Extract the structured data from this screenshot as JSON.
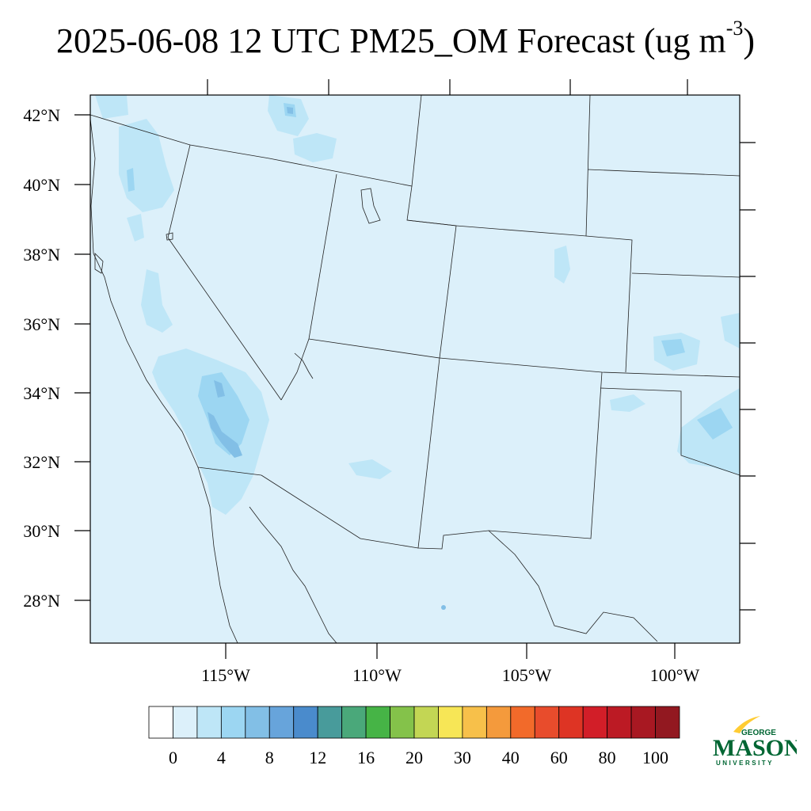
{
  "title": {
    "text": "2025-06-08 12 UTC PM25_OM Forecast (ug m",
    "superscript": "-3",
    "closing": ")"
  },
  "map": {
    "lat_labels": [
      "42°N",
      "40°N",
      "38°N",
      "36°N",
      "34°N",
      "32°N",
      "30°N",
      "28°N"
    ],
    "lon_labels": [
      "115°W",
      "110°W",
      "105°W",
      "100°W"
    ],
    "background_color": "#dcf0fa"
  },
  "colorbar": {
    "colors": [
      "#ffffff",
      "#dcf0fa",
      "#bee6f7",
      "#9cd6f2",
      "#82bfe6",
      "#67a4db",
      "#4a8bcc",
      "#489b9b",
      "#4aa87a",
      "#46b446",
      "#84c24a",
      "#c3d654",
      "#f7e656",
      "#f7c04a",
      "#f49a3c",
      "#f26a2a",
      "#e84c2c",
      "#de3424",
      "#d21e28",
      "#bc1a24",
      "#a81822",
      "#921820"
    ],
    "labels": [
      "0",
      "4",
      "8",
      "12",
      "16",
      "20",
      "30",
      "40",
      "60",
      "80",
      "100"
    ]
  },
  "logo": {
    "top": "GEORGE",
    "main": "MASON",
    "bottom": "UNIVERSITY",
    "green": "#006633",
    "gold": "#ffcc33"
  }
}
